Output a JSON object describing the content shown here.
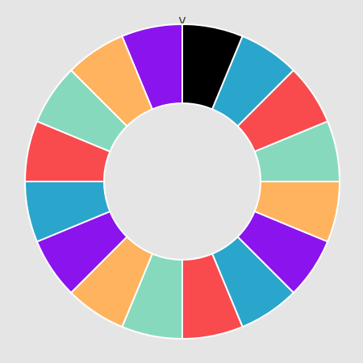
{
  "chart_data": {
    "type": "pie",
    "donut": true,
    "direction": "clockwise",
    "start": "top",
    "axis_label": "v",
    "categories": [
      "",
      "",
      "",
      "",
      "",
      "",
      "",
      "",
      "",
      "",
      "",
      "",
      "",
      "",
      "",
      ""
    ],
    "values": [
      1,
      1,
      1,
      1,
      1,
      1,
      1,
      1,
      1,
      1,
      1,
      1,
      1,
      1,
      1,
      1
    ],
    "colors": [
      "#000000",
      "#2aa6cc",
      "#f94a4e",
      "#87d9be",
      "#ffb35e",
      "#8b13ee",
      "#2aa6cc",
      "#f94a4e",
      "#87d9be",
      "#ffb35e",
      "#8b13ee",
      "#2aa6cc",
      "#f94a4e",
      "#87d9be",
      "#ffb35e",
      "#8b13ee"
    ],
    "background": "#e5e5e5",
    "legend": "none",
    "grid": false
  }
}
